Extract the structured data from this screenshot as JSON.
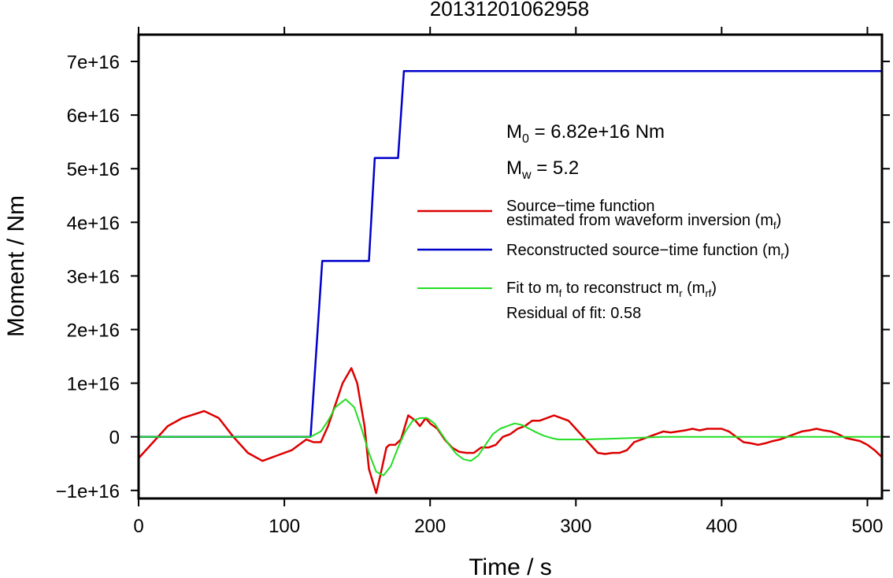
{
  "chart_data": {
    "type": "line",
    "title": "20131201062958",
    "xlabel": "Time / s",
    "ylabel": "Moment / Nm",
    "xlim": [
      0,
      510
    ],
    "ylim": [
      -1.15e+16,
      7.5e+16
    ],
    "xticks": [
      0,
      100,
      200,
      300,
      400,
      500
    ],
    "xtick_labels": [
      "0",
      "100",
      "200",
      "300",
      "400",
      "500"
    ],
    "yticks": [
      -1e+16,
      0,
      1e+16,
      2e+16,
      3e+16,
      4e+16,
      5e+16,
      6e+16,
      7e+16
    ],
    "ytick_labels": [
      "−1e+16",
      "0",
      "1e+16",
      "2e+16",
      "3e+16",
      "4e+16",
      "5e+16",
      "6e+16",
      "7e+16"
    ],
    "grid": false,
    "legend_position": "right",
    "annotations": {
      "m0_main": "M",
      "m0_sub": "0",
      "m0_rest": " = 6.82e+16 Nm",
      "mw_main": "M",
      "mw_sub": "w",
      "mw_rest": " = 5.2",
      "residual": "Residual of fit: 0.58"
    },
    "series": [
      {
        "name": "Source−time function estimated from waveform inversion (m_f)",
        "legend_line1": "Source−time function",
        "legend_line2_main": "estimated from waveform inversion (m",
        "legend_line2_sub": "f",
        "legend_line2_end": ")",
        "color": "#dd0000",
        "x": [
          0,
          10,
          20,
          30,
          45,
          55,
          65,
          75,
          85,
          95,
          105,
          115,
          120,
          125,
          130,
          135,
          140,
          146,
          150,
          155,
          158,
          163,
          166,
          170,
          172,
          176,
          180,
          185,
          190,
          193,
          197,
          200,
          205,
          210,
          215,
          220,
          225,
          230,
          235,
          240,
          245,
          250,
          255,
          260,
          265,
          270,
          275,
          280,
          285,
          290,
          295,
          300,
          305,
          310,
          315,
          320,
          325,
          330,
          335,
          340,
          345,
          350,
          355,
          360,
          365,
          370,
          375,
          380,
          385,
          390,
          395,
          400,
          405,
          410,
          415,
          420,
          425,
          430,
          435,
          440,
          445,
          450,
          455,
          460,
          465,
          470,
          475,
          480,
          485,
          490,
          495,
          500,
          505,
          510
        ],
        "y": [
          -4000000000000000.0,
          -1000000000000000.0,
          2000000000000000.0,
          3500000000000000.0,
          4800000000000000.0,
          3500000000000000.0,
          0,
          -3000000000000000.0,
          -4500000000000000.0,
          -3500000000000000.0,
          -2500000000000000.0,
          -500000000000000.0,
          -1000000000000000.0,
          -1000000000000000.0,
          2000000000000000.0,
          6000000000000000.0,
          1e+16,
          1.28e+16,
          1e+16,
          2000000000000000.0,
          -6000000000000000.0,
          -1.05e+16,
          -7000000000000000.0,
          -2000000000000000.0,
          -1500000000000000.0,
          -1500000000000000.0,
          -500000000000000.0,
          4000000000000000.0,
          3000000000000000.0,
          2000000000000000.0,
          3500000000000000.0,
          2500000000000000.0,
          1500000000000000.0,
          -500000000000000.0,
          -2000000000000000.0,
          -2800000000000000.0,
          -3000000000000000.0,
          -3000000000000000.0,
          -2000000000000000.0,
          -2000000000000000.0,
          -1500000000000000.0,
          0,
          500000000000000.0,
          1500000000000000.0,
          2000000000000000.0,
          3000000000000000.0,
          3000000000000000.0,
          3500000000000000.0,
          4000000000000000.0,
          3500000000000000.0,
          3000000000000000.0,
          1500000000000000.0,
          0,
          -1500000000000000.0,
          -3000000000000000.0,
          -3200000000000000.0,
          -3000000000000000.0,
          -3000000000000000.0,
          -2500000000000000.0,
          -1000000000000000.0,
          -500000000000000.0,
          0,
          500000000000000.0,
          1000000000000000.0,
          800000000000000.0,
          1000000000000000.0,
          1200000000000000.0,
          1500000000000000.0,
          1200000000000000.0,
          1500000000000000.0,
          1500000000000000.0,
          1500000000000000.0,
          1000000000000000.0,
          0,
          -1000000000000000.0,
          -1200000000000000.0,
          -1500000000000000.0,
          -1200000000000000.0,
          -800000000000000.0,
          -500000000000000.0,
          0,
          500000000000000.0,
          1000000000000000.0,
          1200000000000000.0,
          1500000000000000.0,
          1200000000000000.0,
          1000000000000000.0,
          500000000000000.0,
          -200000000000000.0,
          -500000000000000.0,
          -800000000000000.0,
          -1500000000000000.0,
          -2500000000000000.0,
          -3800000000000000.0
        ]
      },
      {
        "name": "Reconstructed source−time function (m_r)",
        "legend_main": "Reconstructed source−time function (m",
        "legend_sub": "r",
        "legend_end": ")",
        "color": "#0000cc",
        "x": [
          0,
          118,
          126,
          158,
          162,
          178,
          182,
          510
        ],
        "y": [
          0,
          0,
          3.28e+16,
          3.28e+16,
          5.2e+16,
          5.2e+16,
          6.82e+16,
          6.82e+16
        ]
      },
      {
        "name": "Fit to m_f to reconstruct m_r (m_rf)",
        "legend_a": "Fit to m",
        "legend_a_sub": "f",
        "legend_b": " to reconstruct m",
        "legend_b_sub": "r",
        "legend_c": " (m",
        "legend_c_sub": "rf",
        "legend_d": ")",
        "color": "#22dd22",
        "x": [
          0,
          110,
          118,
          125,
          130,
          135,
          142,
          148,
          153,
          158,
          163,
          168,
          173,
          178,
          183,
          188,
          193,
          198,
          203,
          208,
          213,
          218,
          223,
          228,
          233,
          238,
          243,
          248,
          253,
          258,
          263,
          268,
          273,
          278,
          283,
          288,
          293,
          298,
          305,
          320,
          340,
          360,
          380,
          400,
          420,
          440,
          460,
          480,
          500,
          510
        ],
        "y": [
          0,
          0,
          0,
          1000000000000000.0,
          3000000000000000.0,
          5500000000000000.0,
          7000000000000000.0,
          5500000000000000.0,
          1500000000000000.0,
          -3000000000000000.0,
          -6500000000000000.0,
          -7200000000000000.0,
          -5500000000000000.0,
          -2000000000000000.0,
          1000000000000000.0,
          3000000000000000.0,
          3500000000000000.0,
          3500000000000000.0,
          2500000000000000.0,
          500000000000000.0,
          -1500000000000000.0,
          -3200000000000000.0,
          -4200000000000000.0,
          -4500000000000000.0,
          -3500000000000000.0,
          -1500000000000000.0,
          500000000000000.0,
          1500000000000000.0,
          2000000000000000.0,
          2500000000000000.0,
          2200000000000000.0,
          1500000000000000.0,
          800000000000000.0,
          200000000000000.0,
          -200000000000000.0,
          -500000000000000.0,
          -500000000000000.0,
          -500000000000000.0,
          -500000000000000.0,
          -400000000000000.0,
          -200000000000000.0,
          0,
          0,
          0,
          0,
          0,
          0,
          0,
          0,
          0
        ]
      }
    ]
  }
}
